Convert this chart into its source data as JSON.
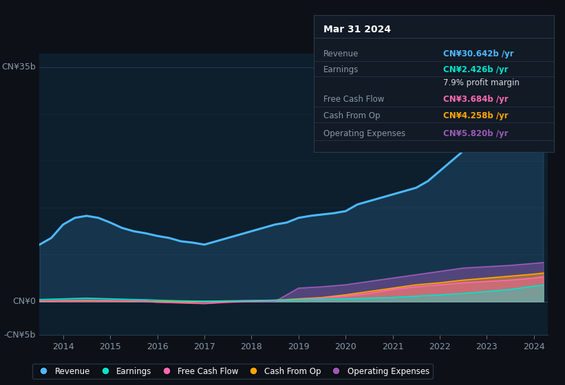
{
  "background_color": "#0d1117",
  "plot_bg_color": "#0d1f2d",
  "ylabel_top": "CN¥35b",
  "ylabel_zero": "CN¥0",
  "ylabel_neg": "-CN¥5b",
  "ylim": [
    -5000000000,
    37000000000
  ],
  "x_start_year": 2013.5,
  "x_end_year": 2024.3,
  "xtick_years": [
    2014,
    2015,
    2016,
    2017,
    2018,
    2019,
    2020,
    2021,
    2022,
    2023,
    2024
  ],
  "revenue_color": "#4db8ff",
  "earnings_color": "#00e5cc",
  "fcf_color": "#ff69b4",
  "cashfromop_color": "#ffa500",
  "opex_color": "#9b59b6",
  "legend_items": [
    {
      "label": "Revenue",
      "color": "#4db8ff"
    },
    {
      "label": "Earnings",
      "color": "#00e5cc"
    },
    {
      "label": "Free Cash Flow",
      "color": "#ff69b4"
    },
    {
      "label": "Cash From Op",
      "color": "#ffa500"
    },
    {
      "label": "Operating Expenses",
      "color": "#9b59b6"
    }
  ],
  "tooltip": {
    "title": "Mar 31 2024",
    "rows": [
      {
        "label": "Revenue",
        "value": "CN¥30.642b /yr",
        "value_color": "#4db8ff"
      },
      {
        "label": "Earnings",
        "value": "CN¥2.426b /yr",
        "value_color": "#00e5cc"
      },
      {
        "label": "",
        "value": "7.9% profit margin",
        "value_color": "#dddddd"
      },
      {
        "label": "Free Cash Flow",
        "value": "CN¥3.684b /yr",
        "value_color": "#ff69b4"
      },
      {
        "label": "Cash From Op",
        "value": "CN¥4.258b /yr",
        "value_color": "#ffa500"
      },
      {
        "label": "Operating Expenses",
        "value": "CN¥5.820b /yr",
        "value_color": "#9b59b6"
      }
    ]
  },
  "revenue_years": [
    2013.5,
    2013.75,
    2014.0,
    2014.25,
    2014.5,
    2014.75,
    2015.0,
    2015.25,
    2015.5,
    2015.75,
    2016.0,
    2016.25,
    2016.5,
    2016.75,
    2017.0,
    2017.25,
    2017.5,
    2017.75,
    2018.0,
    2018.25,
    2018.5,
    2018.75,
    2019.0,
    2019.25,
    2019.5,
    2019.75,
    2020.0,
    2020.25,
    2020.5,
    2020.75,
    2021.0,
    2021.25,
    2021.5,
    2021.75,
    2022.0,
    2022.25,
    2022.5,
    2022.75,
    2023.0,
    2023.25,
    2023.5,
    2023.75,
    2024.0,
    2024.2
  ],
  "revenue_values": [
    8500000000,
    9500000000,
    11500000000,
    12500000000,
    12800000000,
    12500000000,
    11800000000,
    11000000000,
    10500000000,
    10200000000,
    9800000000,
    9500000000,
    9000000000,
    8800000000,
    8500000000,
    9000000000,
    9500000000,
    10000000000,
    10500000000,
    11000000000,
    11500000000,
    11800000000,
    12500000000,
    12800000000,
    13000000000,
    13200000000,
    13500000000,
    14500000000,
    15000000000,
    15500000000,
    16000000000,
    16500000000,
    17000000000,
    18000000000,
    19500000000,
    21000000000,
    22500000000,
    24000000000,
    25500000000,
    27000000000,
    28500000000,
    29500000000,
    30500000000,
    30642000000
  ],
  "earnings_years": [
    2013.5,
    2014.0,
    2014.5,
    2015.0,
    2015.5,
    2016.0,
    2016.5,
    2017.0,
    2017.5,
    2018.0,
    2018.5,
    2019.0,
    2019.5,
    2020.0,
    2020.5,
    2021.0,
    2021.5,
    2022.0,
    2022.5,
    2023.0,
    2023.5,
    2024.0,
    2024.2
  ],
  "earnings_values": [
    300000000,
    400000000,
    500000000,
    400000000,
    300000000,
    200000000,
    100000000,
    50000000,
    100000000,
    150000000,
    200000000,
    250000000,
    300000000,
    400000000,
    500000000,
    600000000,
    800000000,
    1000000000,
    1200000000,
    1500000000,
    1800000000,
    2300000000,
    2426000000
  ],
  "fcf_years": [
    2013.5,
    2014.0,
    2014.5,
    2015.0,
    2015.5,
    2016.0,
    2016.5,
    2017.0,
    2017.5,
    2018.0,
    2018.5,
    2019.0,
    2019.5,
    2020.0,
    2020.5,
    2021.0,
    2021.5,
    2022.0,
    2022.5,
    2023.0,
    2023.5,
    2024.0,
    2024.2
  ],
  "fcf_values": [
    100000000,
    150000000,
    200000000,
    150000000,
    100000000,
    -100000000,
    -200000000,
    -300000000,
    -100000000,
    0,
    100000000,
    300000000,
    500000000,
    800000000,
    1200000000,
    1800000000,
    2200000000,
    2500000000,
    2800000000,
    3000000000,
    3200000000,
    3500000000,
    3684000000
  ],
  "cop_years": [
    2013.5,
    2014.0,
    2014.5,
    2015.0,
    2015.5,
    2016.0,
    2016.5,
    2017.0,
    2017.5,
    2018.0,
    2018.5,
    2019.0,
    2019.5,
    2020.0,
    2020.5,
    2021.0,
    2021.5,
    2022.0,
    2022.5,
    2023.0,
    2023.5,
    2024.0,
    2024.2
  ],
  "cop_values": [
    50000000,
    80000000,
    100000000,
    80000000,
    50000000,
    0,
    -50000000,
    0,
    50000000,
    100000000,
    200000000,
    400000000,
    600000000,
    1000000000,
    1500000000,
    2000000000,
    2500000000,
    2800000000,
    3200000000,
    3500000000,
    3800000000,
    4100000000,
    4258000000
  ],
  "opex_years": [
    2013.5,
    2014.0,
    2014.5,
    2015.0,
    2015.5,
    2016.0,
    2016.5,
    2017.0,
    2017.5,
    2018.0,
    2018.5,
    2019.0,
    2019.5,
    2020.0,
    2020.5,
    2021.0,
    2021.5,
    2022.0,
    2022.5,
    2023.0,
    2023.5,
    2024.0,
    2024.2
  ],
  "opex_values": [
    0,
    0,
    0,
    0,
    0,
    0,
    0,
    0,
    0,
    0,
    0,
    2000000000,
    2200000000,
    2500000000,
    3000000000,
    3500000000,
    4000000000,
    4500000000,
    5000000000,
    5200000000,
    5400000000,
    5700000000,
    5820000000
  ]
}
